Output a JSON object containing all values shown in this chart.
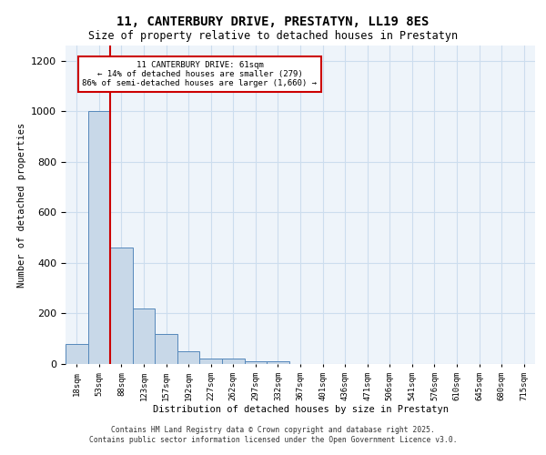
{
  "title": "11, CANTERBURY DRIVE, PRESTATYN, LL19 8ES",
  "subtitle": "Size of property relative to detached houses in Prestatyn",
  "xlabel": "Distribution of detached houses by size in Prestatyn",
  "ylabel": "Number of detached properties",
  "bin_labels": [
    "18sqm",
    "53sqm",
    "88sqm",
    "123sqm",
    "157sqm",
    "192sqm",
    "227sqm",
    "262sqm",
    "297sqm",
    "332sqm",
    "367sqm",
    "401sqm",
    "436sqm",
    "471sqm",
    "506sqm",
    "541sqm",
    "576sqm",
    "610sqm",
    "645sqm",
    "680sqm",
    "715sqm"
  ],
  "bar_heights": [
    80,
    1000,
    460,
    220,
    120,
    50,
    22,
    22,
    10,
    10,
    0,
    0,
    0,
    0,
    0,
    0,
    0,
    0,
    0,
    0,
    0
  ],
  "bar_color": "#c8d8e8",
  "bar_edge_color": "#5588bb",
  "annotation_text": "11 CANTERBURY DRIVE: 61sqm\n← 14% of detached houses are smaller (279)\n86% of semi-detached houses are larger (1,660) →",
  "annotation_box_edge": "#cc0000",
  "annotation_box_face": "#ffffff",
  "vline_x": 1.5,
  "ylim": [
    0,
    1260
  ],
  "yticks": [
    0,
    200,
    400,
    600,
    800,
    1000,
    1200
  ],
  "grid_color": "#ccddee",
  "bg_color": "#eef4fa",
  "footer_line1": "Contains HM Land Registry data © Crown copyright and database right 2025.",
  "footer_line2": "Contains public sector information licensed under the Open Government Licence v3.0."
}
